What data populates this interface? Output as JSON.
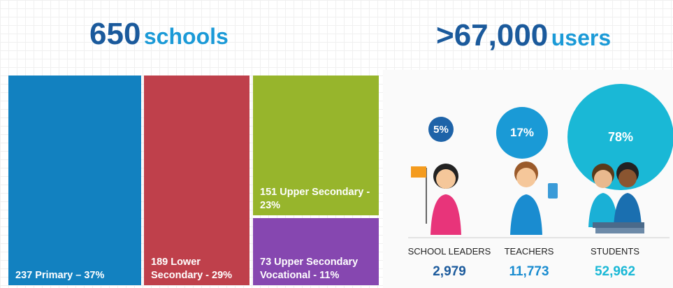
{
  "header": {
    "schools_number": "650",
    "schools_label": "schools",
    "users_number": ">67,000",
    "users_label": "users"
  },
  "treemap": {
    "tiles": [
      {
        "label": "237 Primary – 37%"
      },
      {
        "label": "189 Lower Secondary - 29%"
      },
      {
        "label": "151 Upper Secondary - 23%"
      },
      {
        "label": "73 Upper Secondary Vocational - 11%"
      }
    ]
  },
  "users": {
    "groups": [
      {
        "percent": "5%",
        "name": "SCHOOL LEADERS",
        "count": "2,979"
      },
      {
        "percent": "17%",
        "name": "TEACHERS",
        "count": "11,773"
      },
      {
        "percent": "78%",
        "name": "STUDENTS",
        "count": "52,962"
      }
    ]
  }
}
